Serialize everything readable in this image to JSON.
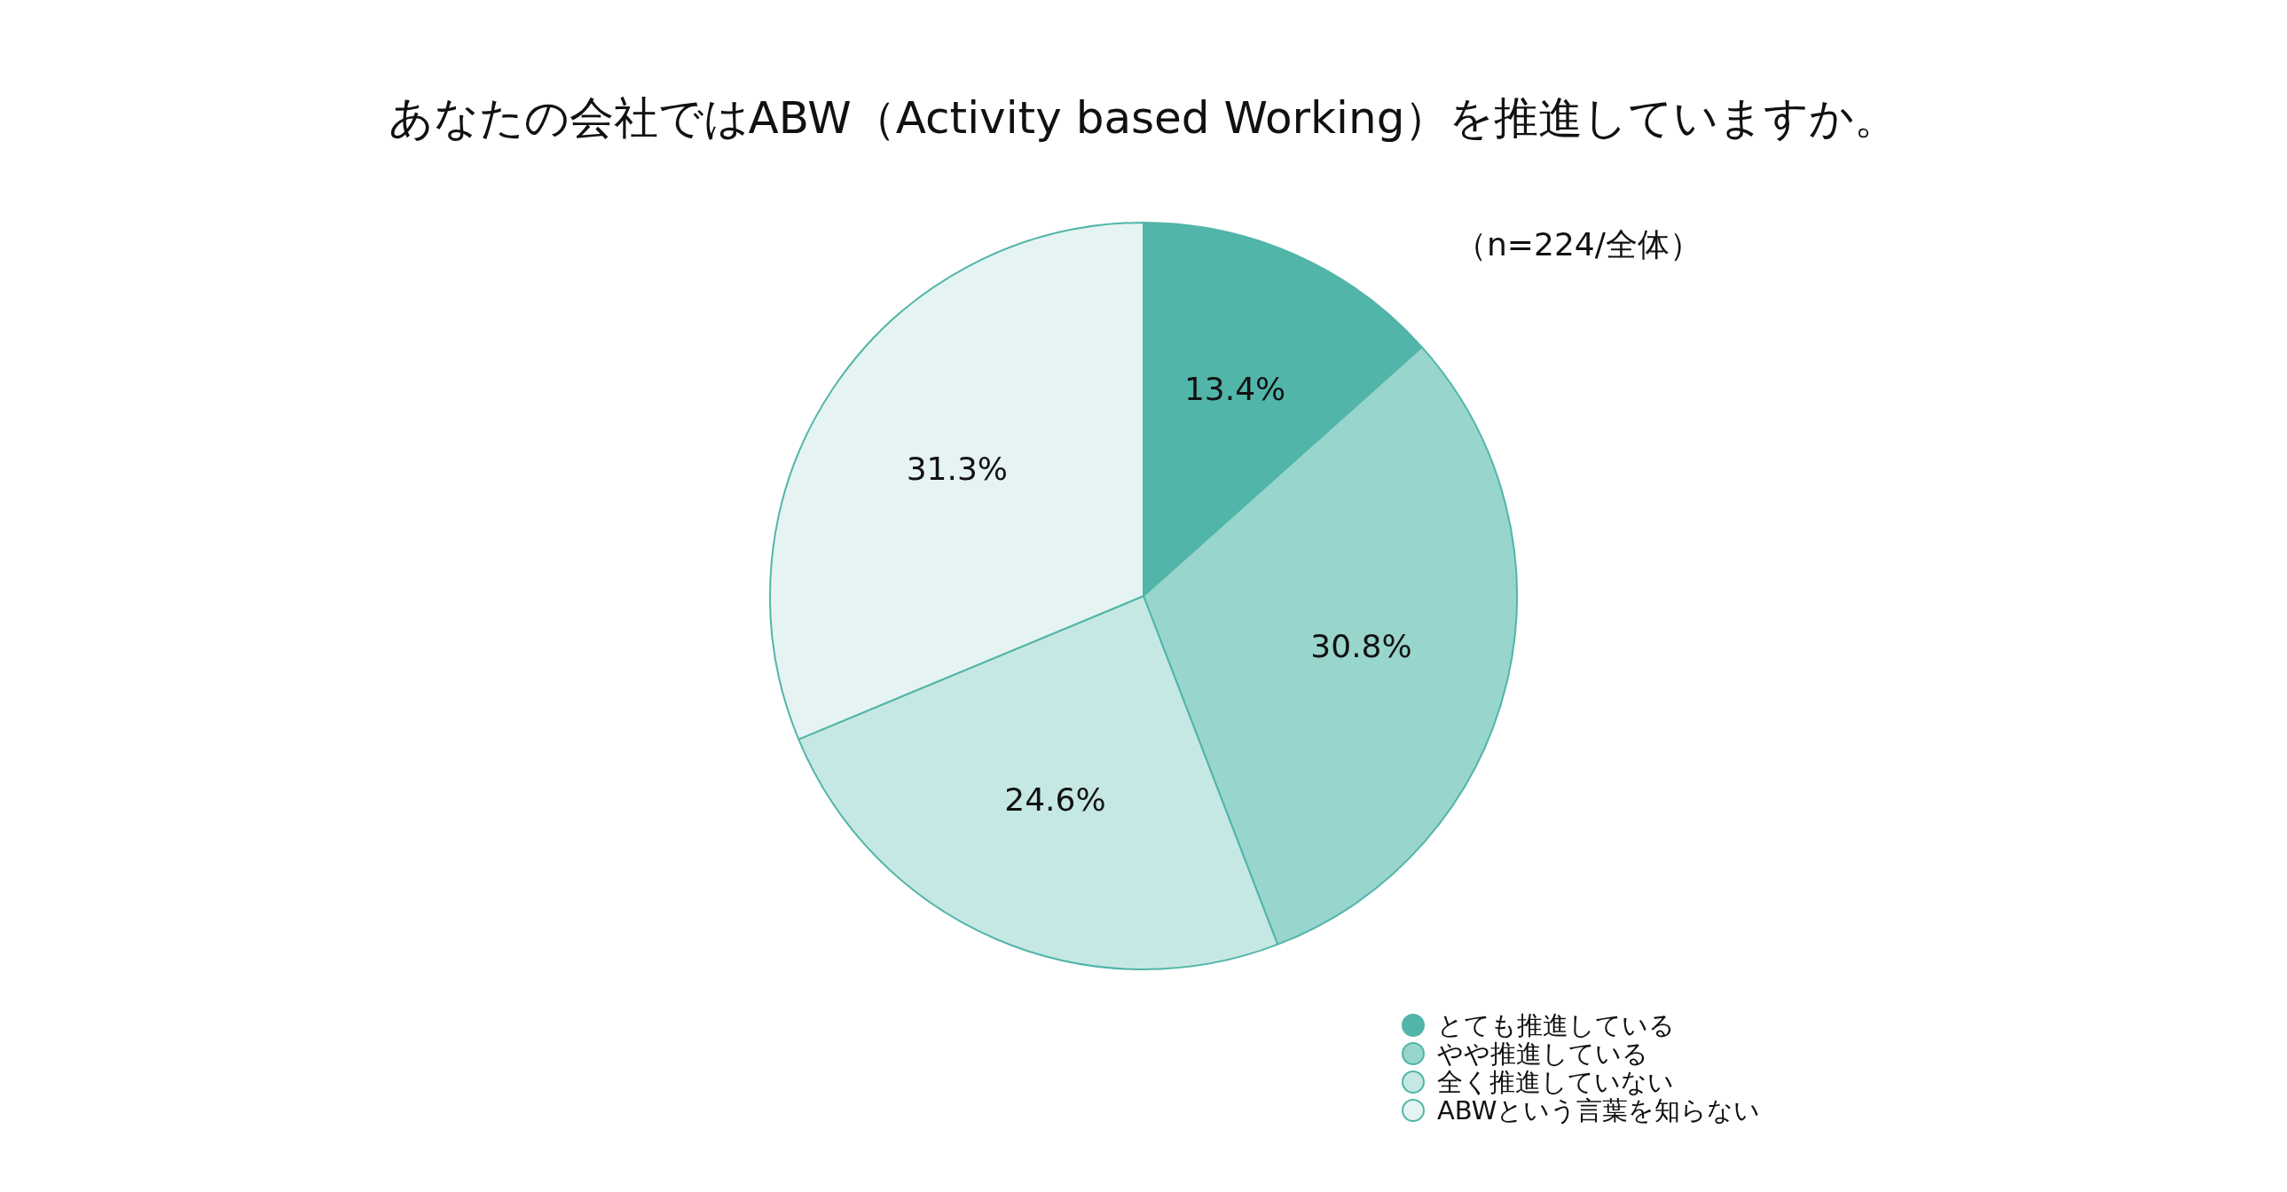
{
  "chart_data": {
    "type": "pie",
    "title": "あなたの会社ではABW（Activity based Working）を推進していますか。",
    "annotations": [
      "（n=224/全体）"
    ],
    "categories": [
      "とても推進している",
      "やや推進している",
      "全く推進していない",
      "ABWという言葉を知らない"
    ],
    "values": [
      13.4,
      30.8,
      24.6,
      31.3
    ],
    "colors": [
      "#52b5a9",
      "#98d5cc",
      "#c6e8e4",
      "#e5f4f2"
    ],
    "value_labels": [
      "13.4%",
      "30.8%",
      "24.6%",
      "31.3%"
    ],
    "legend": "bottom right"
  }
}
